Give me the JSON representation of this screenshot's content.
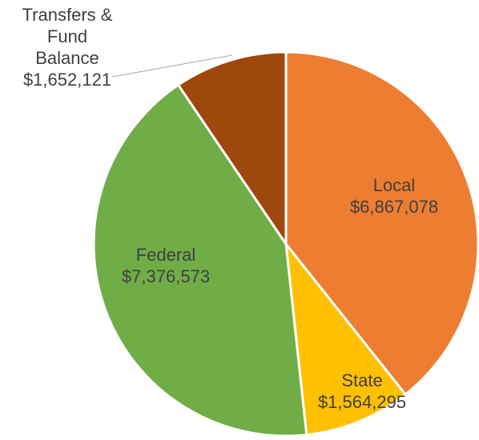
{
  "chart_data": {
    "type": "pie",
    "categories": [
      "Local",
      "State",
      "Federal",
      "Transfers & Fund Balance"
    ],
    "values": [
      6867078,
      1564295,
      7376573,
      1652121
    ],
    "value_labels": [
      "$6,867,078",
      "$1,564,295",
      "$7,376,573",
      "$1,652,121"
    ],
    "colors": [
      "#ed7d31",
      "#ffc000",
      "#70ad47",
      "#9e480e"
    ]
  }
}
